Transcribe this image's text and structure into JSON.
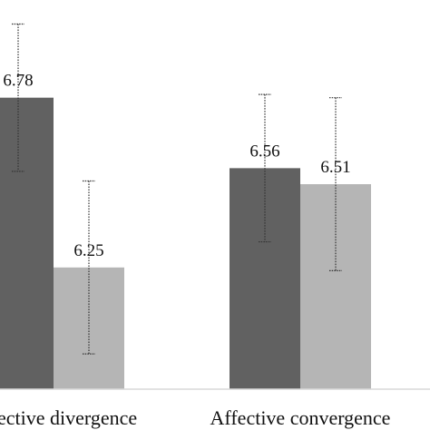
{
  "chart_data": {
    "type": "bar",
    "categories": [
      "Affective divergence",
      "Affective convergence"
    ],
    "series": [
      {
        "color": "#616161",
        "values": [
          6.78,
          6.56
        ],
        "error": [
          0.23,
          0.23
        ]
      },
      {
        "color": "#b5b5b5",
        "values": [
          6.25,
          6.51
        ],
        "error": [
          0.27,
          0.27
        ]
      }
    ],
    "data_labels": [
      [
        "6.78",
        "6.25"
      ],
      [
        "6.56",
        "6.51"
      ]
    ],
    "ylim": [
      5.87,
      7.0
    ],
    "grid": false,
    "legend": "none",
    "baseline_color": "#d9d9d9"
  }
}
